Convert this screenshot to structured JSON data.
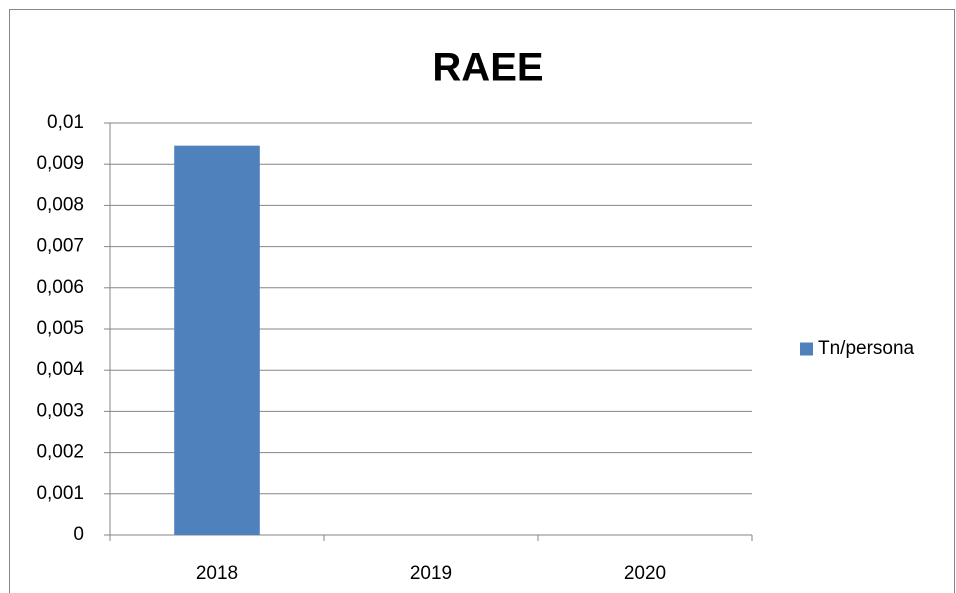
{
  "chart_data": {
    "type": "bar",
    "title": "RAEE",
    "categories": [
      "2018",
      "2019",
      "2020"
    ],
    "series": [
      {
        "name": "Tn/persona",
        "color": "#4f81bd",
        "values": [
          0.00945,
          0,
          0
        ]
      }
    ],
    "ylim": [
      0,
      0.01
    ],
    "yticks": [
      0,
      {
        "value": 0.001,
        "label": "0,001"
      },
      {
        "value": 0.002,
        "label": "0,002"
      },
      {
        "value": 0.003,
        "label": "0,003"
      },
      {
        "value": 0.004,
        "label": "0,004"
      },
      {
        "value": 0.005,
        "label": "0,005"
      },
      {
        "value": 0.006,
        "label": "0,006"
      },
      {
        "value": 0.007,
        "label": "0,007"
      },
      {
        "value": 0.008,
        "label": "0,008"
      },
      {
        "value": 0.009,
        "label": "0,009"
      },
      {
        "value": 0.01,
        "label": "0,01"
      }
    ],
    "grid": true,
    "legend": "right"
  }
}
